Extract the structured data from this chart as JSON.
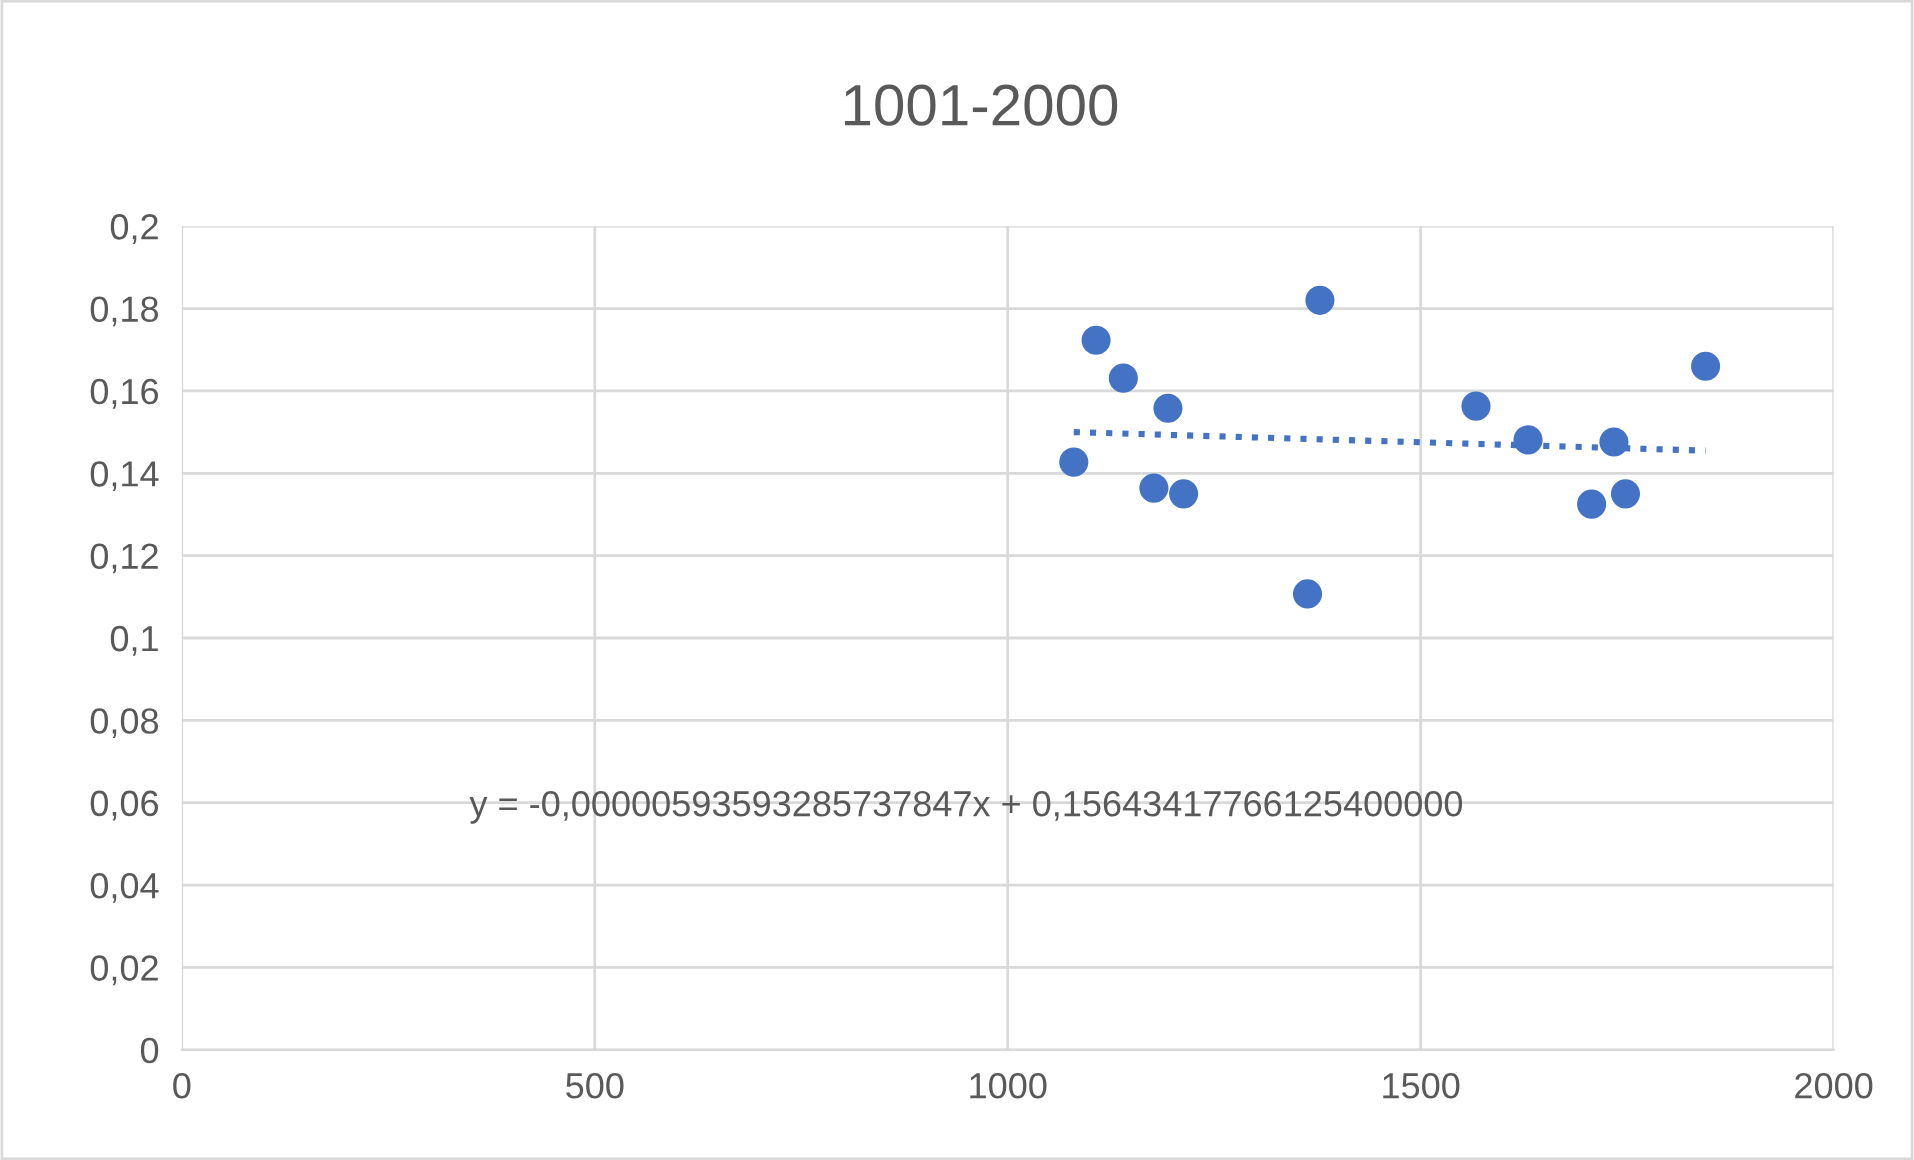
{
  "chart_data": {
    "type": "scatter",
    "title": "1001-2000",
    "series": [
      {
        "color": "#4472c4",
        "marker": "circle",
        "x": [
          1080,
          1107,
          1140,
          1194,
          1177,
          1213,
          1378,
          1363,
          1567,
          1630,
          1734,
          1707,
          1748,
          1845
        ],
        "values": [
          0.1427,
          0.1723,
          0.1631,
          0.1558,
          0.1364,
          0.135,
          0.182,
          0.1107,
          0.1563,
          0.1481,
          0.1476,
          0.1325,
          0.135,
          0.166
        ]
      },
      {
        "type": "line",
        "color": "#4472c4",
        "line_style": "dotted",
        "marker": "none",
        "x": [
          1080,
          1845
        ],
        "values": [
          0.15,
          0.1455
        ]
      }
    ],
    "annotations": [
      "y = -0,00000593593285737847x + 0,15643417766125400000"
    ],
    "xlim": [
      0,
      2000
    ],
    "xticks": [
      0,
      500,
      1000,
      1500,
      2000
    ],
    "ylim": [
      0,
      0.2
    ],
    "yticks": [
      0,
      {
        "value": 0.02,
        "label": "0,02"
      },
      {
        "value": 0.04,
        "label": "0,04"
      },
      {
        "value": 0.06,
        "label": "0,06"
      },
      {
        "value": 0.08,
        "label": "0,08"
      },
      {
        "value": 0.1,
        "label": "0,1"
      },
      {
        "value": 0.12,
        "label": "0,12"
      },
      {
        "value": 0.14,
        "label": "0,14"
      },
      {
        "value": 0.16,
        "label": "0,16"
      },
      {
        "value": 0.18,
        "label": "0,18"
      },
      {
        "value": 0.2,
        "label": "0,2"
      }
    ],
    "grid": true,
    "legend": false
  }
}
